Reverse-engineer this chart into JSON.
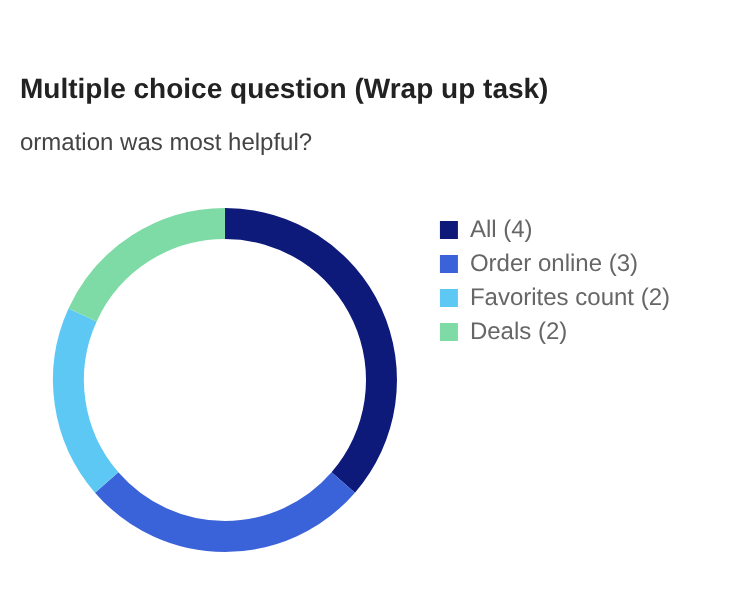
{
  "chart_data": {
    "type": "donut",
    "title": "Multiple choice question (Wrap up task)",
    "subtitle": "ormation was most helpful?",
    "categories": [
      "All (4)",
      "Order online (3)",
      "Favorites count (2)",
      "Deals (2)"
    ],
    "values": [
      4,
      3,
      2,
      2
    ],
    "colors": [
      "#0d1a7a",
      "#3b63d9",
      "#5ec8f5",
      "#7edba6"
    ],
    "legend": "right"
  }
}
